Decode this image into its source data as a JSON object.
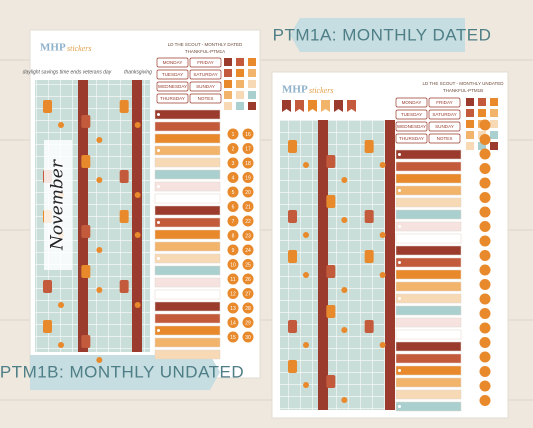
{
  "tags": {
    "dated": "PTM1A: MONTHLY DATED",
    "undated": "PTM1B: MONTHLY UNDATED"
  },
  "sheet1": {
    "logo_brand": "MHP",
    "logo_sub": "stickers",
    "title": "LD THE SCOUT - MONTHLY DATED",
    "code": "THANKFUL-PTM1A",
    "holidays": [
      "daylight savings time ends",
      "veterans day",
      "thanksgiving"
    ],
    "days": [
      "MONDAY",
      "FRIDAY",
      "TUESDAY",
      "SATURDAY",
      "WEDNESDAY",
      "SUNDAY",
      "THURSDAY",
      "NOTES"
    ],
    "month": "November",
    "dates": [
      1,
      2,
      3,
      4,
      5,
      6,
      7,
      8,
      9,
      10,
      11,
      12,
      13,
      14,
      15,
      16,
      17,
      18,
      19,
      20,
      21,
      22,
      23,
      24,
      25,
      26,
      27,
      28,
      29,
      30
    ]
  },
  "sheet2": {
    "logo_brand": "MHP",
    "logo_sub": "stickers",
    "title": "LD THE SCOUT - MONTHLY UNDATED",
    "code": "THANKFUL-PTM1B",
    "days": [
      "MONDAY",
      "FRIDAY",
      "TUESDAY",
      "SATURDAY",
      "WEDNESDAY",
      "SUNDAY",
      "THURSDAY",
      "NOTES"
    ]
  }
}
